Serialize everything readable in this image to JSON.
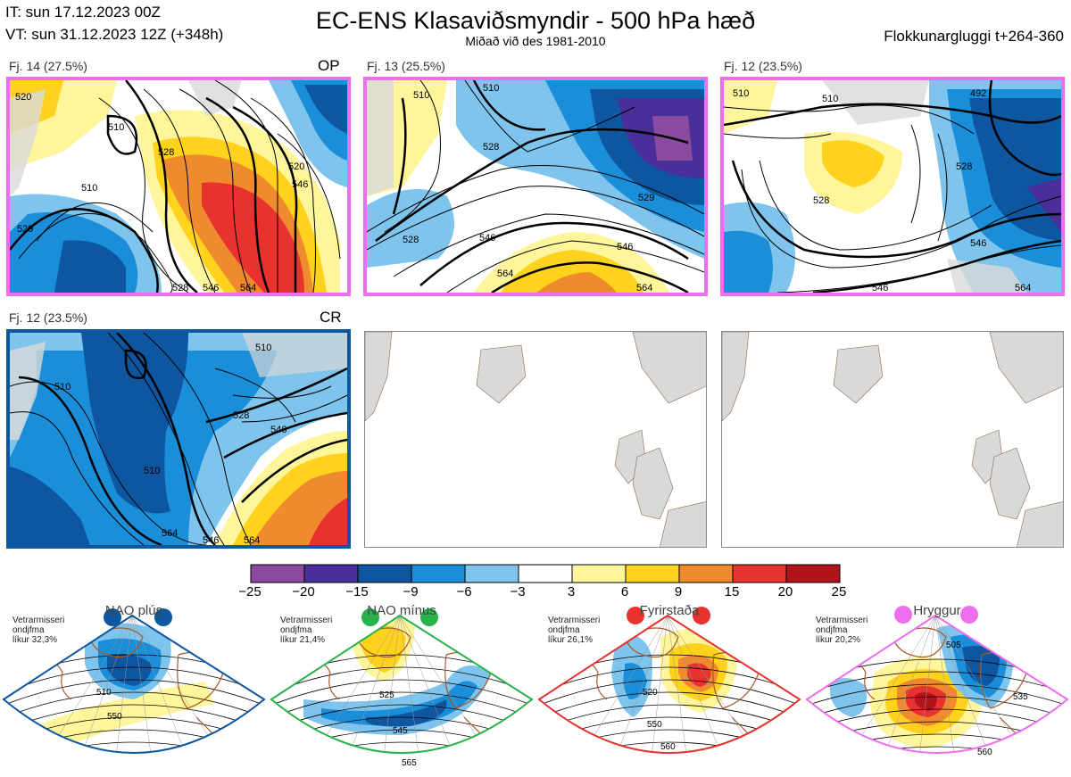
{
  "header": {
    "it": "IT: sun 17.12.2023 00Z",
    "vt": "VT: sun 31.12.2023 12Z  (+348h)",
    "title": "EC-ENS Klasaviðsmyndir - 500 hPa hæð",
    "subtitle": "Miðað við des 1981-2010",
    "window": "Flokkunargluggi t+264-360"
  },
  "panels": [
    {
      "id": "p1",
      "label": "Fj. 14 (27.5%)",
      "tag": "OP",
      "border": "#ee6fee",
      "contours": [
        "520",
        "510",
        "510",
        "529",
        "528",
        "546",
        "528",
        "546",
        "564",
        "520"
      ]
    },
    {
      "id": "p2",
      "label": "Fj. 13 (25.5%)",
      "tag": "",
      "border": "#ee6fee",
      "contours": [
        "510",
        "510",
        "528",
        "528",
        "546",
        "546",
        "564",
        "564",
        "529"
      ]
    },
    {
      "id": "p3",
      "label": "Fj. 12 (23.5%)",
      "tag": "",
      "border": "#ee6fee",
      "contours": [
        "510",
        "492",
        "510",
        "528",
        "528",
        "546",
        "546",
        "564"
      ]
    },
    {
      "id": "p4",
      "label": "Fj. 12 (23.5%)",
      "tag": "CR",
      "border": "#0e56a0",
      "contours": [
        "510",
        "510",
        "528",
        "546",
        "564",
        "510",
        "546",
        "564"
      ]
    }
  ],
  "chart_data": {
    "type": "heatmap",
    "title": "EC-ENS Klasaviðsmyndir - 500 hPa hæð",
    "colorbar": {
      "ticks": [
        "−25",
        "−20",
        "−15",
        "−9",
        "−6",
        "−3",
        "3",
        "6",
        "9",
        "15",
        "20",
        "25"
      ],
      "colors": [
        "#8a4aa0",
        "#4a2f9a",
        "#0e56a0",
        "#1a8ed8",
        "#7fc4ec",
        "#ffffff",
        "#fff59a",
        "#ffd21e",
        "#f08a2e",
        "#e8322f",
        "#b3131b"
      ]
    },
    "regimes": [
      {
        "name": "NAO plús",
        "text1": "Vetrarmisseri",
        "text2": "ondjfma",
        "text3": "líkur 32,3%",
        "color": "#0e56a0",
        "contours": [
          "510",
          "550"
        ]
      },
      {
        "name": "NAO mínus",
        "text1": "Vetrarmisseri",
        "text2": "ondjfma",
        "text3": "líkur 21,4%",
        "color": "#29b24a",
        "contours": [
          "525",
          "545",
          "565"
        ]
      },
      {
        "name": "Fyrirstaða",
        "text1": "Vetrarmisseri",
        "text2": "ondjfma",
        "text3": "líkur 26,1%",
        "color": "#e8322f",
        "contours": [
          "520",
          "550",
          "560"
        ]
      },
      {
        "name": "Hryggur",
        "text1": "Vetrarmisseri",
        "text2": "ondjfma",
        "text3": "líkur 20,2%",
        "color": "#ee6fee",
        "contours": [
          "505",
          "535",
          "560"
        ]
      }
    ]
  }
}
